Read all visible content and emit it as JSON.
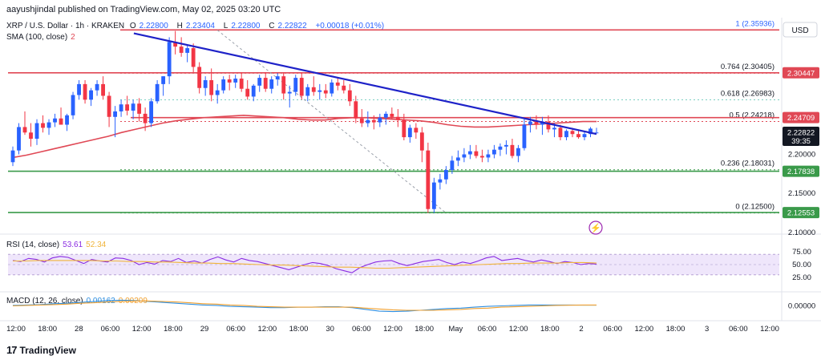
{
  "header": {
    "publisher_text": "aayushjindal published on TradingView.com, May 02, 2025 03:20 UTC"
  },
  "legend": {
    "symbol": "XRP / U.S. Dollar · 1h · KRAKEN",
    "o_label": "O",
    "o_value": "2.22800",
    "h_label": "H",
    "h_value": "2.23404",
    "l_label": "L",
    "l_value": "2.22800",
    "c_label": "C",
    "c_value": "2.22822",
    "change": "+0.00018 (+0.01%)",
    "sma_label": "SMA (100, close)",
    "sma_value": "2"
  },
  "rsi_legend": {
    "label": "RSI (14, close)",
    "value1": "53.61",
    "value2": "52.34"
  },
  "macd_legend": {
    "label": "MACD (12, 26, close)",
    "value1": "0.00162",
    "value2": "0.00209"
  },
  "currency": "USD",
  "brand": "TradingView",
  "colors": {
    "up": "#2962ff",
    "down": "#f23645",
    "sma": "#e04855",
    "trend": "#1e22c8",
    "fib_red": "#e04855",
    "fib_green": "#3a9a4a",
    "fib_teal": "#7ccfc2",
    "rsi_band": "#efe6fb",
    "rsi_line": "#8a2be2",
    "rsi_ma": "#f0b43a",
    "macd_line": "#2e8ee0",
    "signal_line": "#f0a030",
    "price_badge": "#131722",
    "res_badge": "#e04855",
    "sup_badge": "#3a9a4a"
  },
  "chart_data": {
    "type": "candlestick",
    "ylim": [
      2.102,
      2.372
    ],
    "y_ticks": [
      "2.20000",
      "2.15000",
      "2.10000"
    ],
    "x_ticks": [
      "12:00",
      "18:00",
      "28",
      "06:00",
      "12:00",
      "18:00",
      "29",
      "06:00",
      "12:00",
      "18:00",
      "30",
      "06:00",
      "12:00",
      "18:00",
      "May",
      "06:00",
      "12:00",
      "18:00",
      "2",
      "06:00",
      "12:00",
      "18:00",
      "3",
      "06:00",
      "12:00"
    ],
    "candles": [
      {
        "o": 2.19,
        "h": 2.21,
        "l": 2.185,
        "c": 2.205
      },
      {
        "o": 2.205,
        "h": 2.24,
        "l": 2.2,
        "c": 2.235
      },
      {
        "o": 2.235,
        "h": 2.255,
        "l": 2.225,
        "c": 2.228
      },
      {
        "o": 2.228,
        "h": 2.24,
        "l": 2.21,
        "c": 2.22
      },
      {
        "o": 2.22,
        "h": 2.245,
        "l": 2.212,
        "c": 2.24
      },
      {
        "o": 2.24,
        "h": 2.25,
        "l": 2.228,
        "c": 2.234
      },
      {
        "o": 2.234,
        "h": 2.245,
        "l": 2.225,
        "c": 2.241
      },
      {
        "o": 2.241,
        "h": 2.252,
        "l": 2.235,
        "c": 2.246
      },
      {
        "o": 2.246,
        "h": 2.26,
        "l": 2.24,
        "c": 2.238
      },
      {
        "o": 2.238,
        "h": 2.252,
        "l": 2.23,
        "c": 2.25
      },
      {
        "o": 2.25,
        "h": 2.28,
        "l": 2.245,
        "c": 2.276
      },
      {
        "o": 2.276,
        "h": 2.295,
        "l": 2.27,
        "c": 2.29
      },
      {
        "o": 2.29,
        "h": 2.295,
        "l": 2.265,
        "c": 2.27
      },
      {
        "o": 2.27,
        "h": 2.285,
        "l": 2.262,
        "c": 2.282
      },
      {
        "o": 2.282,
        "h": 2.295,
        "l": 2.275,
        "c": 2.29
      },
      {
        "o": 2.29,
        "h": 2.3,
        "l": 2.27,
        "c": 2.275
      },
      {
        "o": 2.275,
        "h": 2.28,
        "l": 2.235,
        "c": 2.248
      },
      {
        "o": 2.248,
        "h": 2.262,
        "l": 2.222,
        "c": 2.255
      },
      {
        "o": 2.255,
        "h": 2.27,
        "l": 2.248,
        "c": 2.264
      },
      {
        "o": 2.264,
        "h": 2.275,
        "l": 2.25,
        "c": 2.256
      },
      {
        "o": 2.256,
        "h": 2.27,
        "l": 2.245,
        "c": 2.265
      },
      {
        "o": 2.265,
        "h": 2.272,
        "l": 2.242,
        "c": 2.252
      },
      {
        "o": 2.252,
        "h": 2.26,
        "l": 2.23,
        "c": 2.24
      },
      {
        "o": 2.24,
        "h": 2.272,
        "l": 2.235,
        "c": 2.268
      },
      {
        "o": 2.268,
        "h": 2.295,
        "l": 2.265,
        "c": 2.29
      },
      {
        "o": 2.29,
        "h": 2.3,
        "l": 2.275,
        "c": 2.3
      },
      {
        "o": 2.3,
        "h": 2.35,
        "l": 2.29,
        "c": 2.344
      },
      {
        "o": 2.344,
        "h": 2.358,
        "l": 2.328,
        "c": 2.338
      },
      {
        "o": 2.338,
        "h": 2.35,
        "l": 2.325,
        "c": 2.33
      },
      {
        "o": 2.33,
        "h": 2.34,
        "l": 2.318,
        "c": 2.336
      },
      {
        "o": 2.336,
        "h": 2.342,
        "l": 2.305,
        "c": 2.312
      },
      {
        "o": 2.312,
        "h": 2.318,
        "l": 2.278,
        "c": 2.285
      },
      {
        "o": 2.285,
        "h": 2.3,
        "l": 2.275,
        "c": 2.295
      },
      {
        "o": 2.295,
        "h": 2.31,
        "l": 2.268,
        "c": 2.276
      },
      {
        "o": 2.276,
        "h": 2.29,
        "l": 2.265,
        "c": 2.282
      },
      {
        "o": 2.282,
        "h": 2.3,
        "l": 2.278,
        "c": 2.296
      },
      {
        "o": 2.296,
        "h": 2.302,
        "l": 2.282,
        "c": 2.292
      },
      {
        "o": 2.292,
        "h": 2.302,
        "l": 2.285,
        "c": 2.297
      },
      {
        "o": 2.297,
        "h": 2.305,
        "l": 2.28,
        "c": 2.284
      },
      {
        "o": 2.284,
        "h": 2.295,
        "l": 2.27,
        "c": 2.274
      },
      {
        "o": 2.274,
        "h": 2.29,
        "l": 2.268,
        "c": 2.288
      },
      {
        "o": 2.288,
        "h": 2.302,
        "l": 2.28,
        "c": 2.298
      },
      {
        "o": 2.298,
        "h": 2.305,
        "l": 2.28,
        "c": 2.284
      },
      {
        "o": 2.284,
        "h": 2.3,
        "l": 2.278,
        "c": 2.296
      },
      {
        "o": 2.296,
        "h": 2.304,
        "l": 2.288,
        "c": 2.3
      },
      {
        "o": 2.3,
        "h": 2.305,
        "l": 2.27,
        "c": 2.278
      },
      {
        "o": 2.278,
        "h": 2.288,
        "l": 2.26,
        "c": 2.28
      },
      {
        "o": 2.28,
        "h": 2.302,
        "l": 2.275,
        "c": 2.298
      },
      {
        "o": 2.298,
        "h": 2.305,
        "l": 2.27,
        "c": 2.275
      },
      {
        "o": 2.275,
        "h": 2.29,
        "l": 2.268,
        "c": 2.286
      },
      {
        "o": 2.286,
        "h": 2.3,
        "l": 2.275,
        "c": 2.28
      },
      {
        "o": 2.28,
        "h": 2.29,
        "l": 2.27,
        "c": 2.282
      },
      {
        "o": 2.282,
        "h": 2.29,
        "l": 2.272,
        "c": 2.278
      },
      {
        "o": 2.278,
        "h": 2.296,
        "l": 2.274,
        "c": 2.292
      },
      {
        "o": 2.292,
        "h": 2.298,
        "l": 2.282,
        "c": 2.288
      },
      {
        "o": 2.288,
        "h": 2.295,
        "l": 2.278,
        "c": 2.282
      },
      {
        "o": 2.282,
        "h": 2.29,
        "l": 2.262,
        "c": 2.268
      },
      {
        "o": 2.268,
        "h": 2.275,
        "l": 2.24,
        "c": 2.246
      },
      {
        "o": 2.246,
        "h": 2.258,
        "l": 2.235,
        "c": 2.24
      },
      {
        "o": 2.24,
        "h": 2.255,
        "l": 2.235,
        "c": 2.244
      },
      {
        "o": 2.244,
        "h": 2.25,
        "l": 2.232,
        "c": 2.241
      },
      {
        "o": 2.241,
        "h": 2.252,
        "l": 2.235,
        "c": 2.247
      },
      {
        "o": 2.247,
        "h": 2.255,
        "l": 2.238,
        "c": 2.252
      },
      {
        "o": 2.252,
        "h": 2.26,
        "l": 2.245,
        "c": 2.248
      },
      {
        "o": 2.248,
        "h": 2.258,
        "l": 2.235,
        "c": 2.244
      },
      {
        "o": 2.244,
        "h": 2.252,
        "l": 2.218,
        "c": 2.222
      },
      {
        "o": 2.222,
        "h": 2.238,
        "l": 2.215,
        "c": 2.234
      },
      {
        "o": 2.234,
        "h": 2.24,
        "l": 2.22,
        "c": 2.228
      },
      {
        "o": 2.228,
        "h": 2.235,
        "l": 2.19,
        "c": 2.205
      },
      {
        "o": 2.205,
        "h": 2.215,
        "l": 2.125,
        "c": 2.13
      },
      {
        "o": 2.13,
        "h": 2.17,
        "l": 2.125,
        "c": 2.164
      },
      {
        "o": 2.164,
        "h": 2.175,
        "l": 2.155,
        "c": 2.168
      },
      {
        "o": 2.168,
        "h": 2.185,
        "l": 2.162,
        "c": 2.18
      },
      {
        "o": 2.18,
        "h": 2.198,
        "l": 2.175,
        "c": 2.192
      },
      {
        "o": 2.192,
        "h": 2.205,
        "l": 2.185,
        "c": 2.196
      },
      {
        "o": 2.196,
        "h": 2.208,
        "l": 2.19,
        "c": 2.2
      },
      {
        "o": 2.2,
        "h": 2.212,
        "l": 2.194,
        "c": 2.204
      },
      {
        "o": 2.204,
        "h": 2.212,
        "l": 2.195,
        "c": 2.198
      },
      {
        "o": 2.198,
        "h": 2.206,
        "l": 2.19,
        "c": 2.196
      },
      {
        "o": 2.196,
        "h": 2.206,
        "l": 2.19,
        "c": 2.2
      },
      {
        "o": 2.2,
        "h": 2.212,
        "l": 2.195,
        "c": 2.206
      },
      {
        "o": 2.206,
        "h": 2.214,
        "l": 2.198,
        "c": 2.21
      },
      {
        "o": 2.21,
        "h": 2.218,
        "l": 2.2,
        "c": 2.212
      },
      {
        "o": 2.212,
        "h": 2.22,
        "l": 2.195,
        "c": 2.198
      },
      {
        "o": 2.198,
        "h": 2.212,
        "l": 2.19,
        "c": 2.208
      },
      {
        "o": 2.208,
        "h": 2.245,
        "l": 2.205,
        "c": 2.238
      },
      {
        "o": 2.238,
        "h": 2.248,
        "l": 2.228,
        "c": 2.242
      },
      {
        "o": 2.242,
        "h": 2.25,
        "l": 2.232,
        "c": 2.238
      },
      {
        "o": 2.238,
        "h": 2.248,
        "l": 2.225,
        "c": 2.242
      },
      {
        "o": 2.242,
        "h": 2.25,
        "l": 2.228,
        "c": 2.232
      },
      {
        "o": 2.232,
        "h": 2.24,
        "l": 2.222,
        "c": 2.234
      },
      {
        "o": 2.234,
        "h": 2.238,
        "l": 2.218,
        "c": 2.222
      },
      {
        "o": 2.222,
        "h": 2.232,
        "l": 2.218,
        "c": 2.23
      },
      {
        "o": 2.23,
        "h": 2.234,
        "l": 2.222,
        "c": 2.226
      },
      {
        "o": 2.226,
        "h": 2.232,
        "l": 2.22,
        "c": 2.222
      },
      {
        "o": 2.222,
        "h": 2.23,
        "l": 2.218,
        "c": 2.226
      },
      {
        "o": 2.226,
        "h": 2.235,
        "l": 2.222,
        "c": 2.233
      },
      {
        "o": 2.228,
        "h": 2.234,
        "l": 2.228,
        "c": 2.228
      }
    ],
    "sma_values": [
      2.196,
      2.199,
      2.203,
      2.207,
      2.211,
      2.215,
      2.219,
      2.223,
      2.228,
      2.232,
      2.236,
      2.24,
      2.243,
      2.245,
      2.247,
      2.248,
      2.249,
      2.25,
      2.249,
      2.248,
      2.247,
      2.245,
      2.244,
      2.244,
      2.246,
      2.247,
      2.247,
      2.246,
      2.245,
      2.244,
      2.243,
      2.241,
      2.238,
      2.236,
      2.235,
      2.235,
      2.236,
      2.237,
      2.238,
      2.239,
      2.24,
      2.241,
      2.242,
      2.242
    ],
    "fib_levels": [
      {
        "ratio": "1",
        "price": 2.35936,
        "label": "1 (2.35936)"
      },
      {
        "ratio": "0.764",
        "price": 2.30405,
        "label": "0.764 (2.30405)"
      },
      {
        "ratio": "0.618",
        "price": 2.26983,
        "label": "0.618 (2.26983)"
      },
      {
        "ratio": "0.5",
        "price": 2.24218,
        "label": "0.5 (2.24218)"
      },
      {
        "ratio": "0.236",
        "price": 2.18031,
        "label": "0.236 (2.18031)"
      },
      {
        "ratio": "0",
        "price": 2.125,
        "label": "0 (2.12500)"
      }
    ],
    "levels": [
      {
        "price": 2.35936,
        "kind": "resistance"
      },
      {
        "price": 2.30447,
        "kind": "resistance"
      },
      {
        "price": 2.24709,
        "kind": "resistance"
      },
      {
        "price": 2.17838,
        "kind": "support"
      },
      {
        "price": 2.12553,
        "kind": "support"
      }
    ],
    "price_badges": [
      {
        "value": "2.30447",
        "price": 2.30447,
        "kind": "res"
      },
      {
        "value": "2.24709",
        "price": 2.24709,
        "kind": "res"
      },
      {
        "value": "2.22822",
        "price": 2.22822,
        "kind": "current",
        "sub": "39:35"
      },
      {
        "value": "2.17838",
        "price": 2.17838,
        "kind": "sup"
      },
      {
        "value": "2.12553",
        "price": 2.12553,
        "kind": "sup"
      }
    ],
    "trendline": [
      {
        "bar": 34,
        "price": 2.355
      },
      {
        "bar": 164,
        "price": 2.226
      }
    ],
    "rsi": {
      "ylim": [
        0,
        100
      ],
      "ticks": [
        "75.00",
        "50.00",
        "25.00"
      ],
      "band": [
        30,
        70
      ],
      "values": [
        58,
        56,
        62,
        60,
        55,
        63,
        66,
        64,
        58,
        52,
        60,
        57,
        55,
        63,
        62,
        58,
        50,
        54,
        51,
        58,
        56,
        62,
        54,
        57,
        53,
        60,
        65,
        59,
        55,
        62,
        58,
        56,
        52,
        48,
        44,
        40,
        45,
        50,
        54,
        52,
        48,
        42,
        38,
        34,
        44,
        50,
        55,
        57,
        58,
        52,
        48,
        52,
        56,
        58,
        60,
        54,
        50,
        55,
        52,
        57,
        63,
        66,
        58,
        60,
        62,
        58,
        55,
        59,
        56,
        52,
        56,
        54,
        50,
        52,
        51
      ],
      "ma_values": [
        57,
        57,
        58,
        58,
        58,
        58,
        58,
        57,
        57,
        56,
        56,
        55,
        55,
        54,
        53,
        53,
        52,
        52,
        51,
        50,
        49,
        49,
        48,
        47,
        46,
        45,
        45,
        44,
        43,
        43,
        44,
        45,
        46,
        47,
        48,
        49,
        50,
        51,
        52,
        52,
        53,
        53,
        53,
        54,
        54,
        53
      ]
    },
    "macd": {
      "ylim": [
        -0.03,
        0.03
      ],
      "ticks": [
        "0.00000"
      ],
      "macd_values": [
        0.001,
        0.002,
        0.003,
        0.005,
        0.006,
        0.008,
        0.01,
        0.012,
        0.013,
        0.012,
        0.01,
        0.008,
        0.006,
        0.004,
        0.002,
        0.001,
        -0.001,
        -0.002,
        -0.003,
        -0.004,
        -0.004,
        -0.003,
        -0.003,
        -0.002,
        -0.002,
        -0.004,
        -0.008,
        -0.012,
        -0.013,
        -0.012,
        -0.01,
        -0.008,
        -0.006,
        -0.005,
        -0.003,
        -0.001,
        0.0,
        0.001,
        0.002,
        0.002,
        0.002,
        0.002,
        0.0016,
        0.0016
      ],
      "signal_values": [
        0.0,
        0.001,
        0.002,
        0.003,
        0.004,
        0.006,
        0.007,
        0.009,
        0.01,
        0.011,
        0.011,
        0.01,
        0.009,
        0.007,
        0.005,
        0.004,
        0.002,
        0.001,
        -0.001,
        -0.002,
        -0.003,
        -0.003,
        -0.003,
        -0.003,
        -0.003,
        -0.003,
        -0.005,
        -0.007,
        -0.009,
        -0.01,
        -0.01,
        -0.01,
        -0.009,
        -0.008,
        -0.006,
        -0.005,
        -0.003,
        -0.002,
        -0.001,
        0.0,
        0.001,
        0.0015,
        0.002,
        0.002
      ]
    }
  }
}
